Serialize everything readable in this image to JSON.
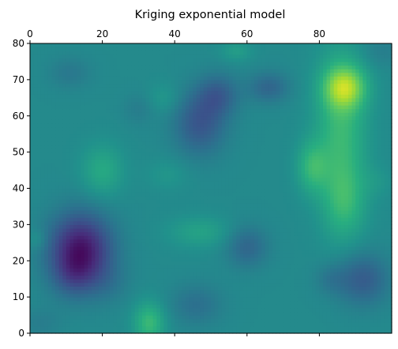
{
  "chart_data": {
    "type": "heatmap",
    "title": "Kriging exponential model",
    "xlabel": "",
    "ylabel": "",
    "xlim": [
      0,
      100
    ],
    "ylim": [
      0,
      80
    ],
    "x_axis_position": "top",
    "x_ticks": [
      0,
      20,
      40,
      60,
      80
    ],
    "y_ticks": [
      0,
      10,
      20,
      30,
      40,
      50,
      60,
      70,
      80
    ],
    "grid": false,
    "colormap": "viridis",
    "colormap_stops": [
      "#440154",
      "#472d7b",
      "#3b528b",
      "#2c728e",
      "#21918c",
      "#28ae80",
      "#5ec962",
      "#addc30",
      "#fde725"
    ],
    "background_value": 0.47,
    "features": [
      {
        "x": 14,
        "y": 23,
        "sx": 6,
        "sy": 7,
        "amp": -0.42
      },
      {
        "x": 12,
        "y": 16,
        "sx": 4,
        "sy": 4,
        "amp": -0.1
      },
      {
        "x": 22,
        "y": 14,
        "sx": 4,
        "sy": 4,
        "amp": -0.05
      },
      {
        "x": 47,
        "y": 58,
        "sx": 5,
        "sy": 6,
        "amp": -0.2
      },
      {
        "x": 52,
        "y": 66,
        "sx": 4,
        "sy": 4,
        "amp": -0.16
      },
      {
        "x": 66,
        "y": 68,
        "sx": 4,
        "sy": 3,
        "amp": -0.14
      },
      {
        "x": 11,
        "y": 72,
        "sx": 4,
        "sy": 3,
        "amp": -0.07
      },
      {
        "x": 30,
        "y": 62,
        "sx": 3,
        "sy": 3,
        "amp": -0.05
      },
      {
        "x": 60,
        "y": 24,
        "sx": 4,
        "sy": 4,
        "amp": -0.14
      },
      {
        "x": 46,
        "y": 8,
        "sx": 5,
        "sy": 4,
        "amp": -0.1
      },
      {
        "x": 92,
        "y": 15,
        "sx": 5,
        "sy": 5,
        "amp": -0.18
      },
      {
        "x": 83,
        "y": 15,
        "sx": 3,
        "sy": 3,
        "amp": -0.07
      },
      {
        "x": 3,
        "y": 3,
        "sx": 4,
        "sy": 3,
        "amp": -0.05
      },
      {
        "x": 97,
        "y": 78,
        "sx": 4,
        "sy": 3,
        "amp": -0.05
      },
      {
        "x": 87,
        "y": 68,
        "sx": 4,
        "sy": 4,
        "amp": 0.32
      },
      {
        "x": 86,
        "y": 56,
        "sx": 5,
        "sy": 16,
        "amp": 0.2
      },
      {
        "x": 87,
        "y": 36,
        "sx": 4,
        "sy": 7,
        "amp": 0.13
      },
      {
        "x": 78,
        "y": 46,
        "sx": 3,
        "sy": 5,
        "amp": 0.17
      },
      {
        "x": 20,
        "y": 45,
        "sx": 4,
        "sy": 5,
        "amp": 0.13
      },
      {
        "x": 33,
        "y": 3,
        "sx": 3,
        "sy": 4,
        "amp": 0.2
      },
      {
        "x": 47,
        "y": 28,
        "sx": 6,
        "sy": 3,
        "amp": 0.1
      },
      {
        "x": 57,
        "y": 78,
        "sx": 3,
        "sy": 2,
        "amp": 0.08
      },
      {
        "x": 38,
        "y": 44,
        "sx": 4,
        "sy": 3,
        "amp": 0.05
      },
      {
        "x": 2,
        "y": 26,
        "sx": 2,
        "sy": 2,
        "amp": 0.06
      },
      {
        "x": 37,
        "y": 65,
        "sx": 3,
        "sy": 3,
        "amp": 0.06
      },
      {
        "x": 96,
        "y": 42,
        "sx": 3,
        "sy": 3,
        "amp": 0.04
      }
    ]
  }
}
